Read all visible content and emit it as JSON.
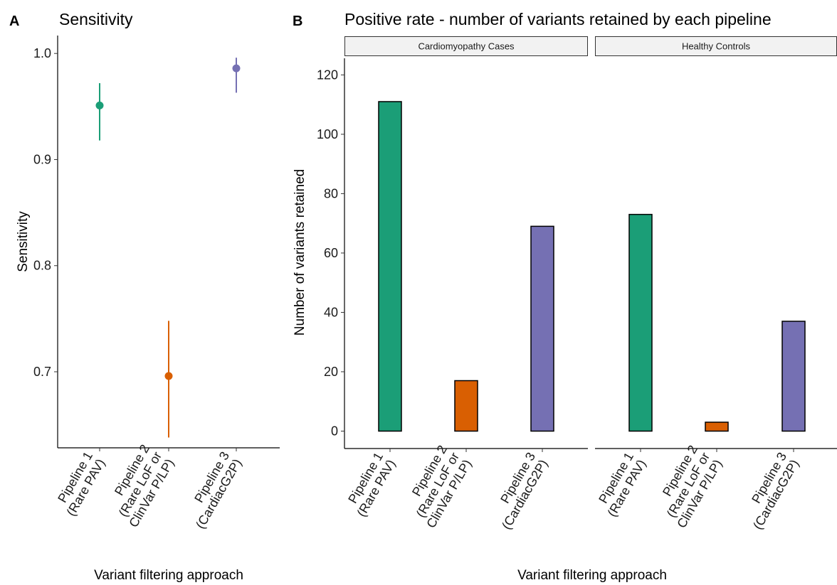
{
  "chart_data": [
    {
      "panel": "A",
      "type": "scatter",
      "title": "Sensitivity",
      "xlabel": "Variant filtering approach",
      "ylabel": "Sensitivity",
      "ylim": [
        0.625,
        1.015
      ],
      "yticks": [
        "0.7",
        "0.8",
        "0.9",
        "1.0"
      ],
      "categories": [
        [
          "Pipeline 1",
          "(Rare PAV)"
        ],
        [
          "Pipeline 2",
          "(Rare LoF or",
          "ClinVar P/LP)"
        ],
        [
          "Pipeline 3",
          "(CardiacG2P)"
        ]
      ],
      "points": [
        {
          "value": 0.951,
          "lower": 0.918,
          "upper": 0.972,
          "color": "#1b9e77"
        },
        {
          "value": 0.696,
          "lower": 0.638,
          "upper": 0.748,
          "color": "#d95f02"
        },
        {
          "value": 0.986,
          "lower": 0.963,
          "upper": 0.996,
          "color": "#7570b3"
        }
      ],
      "grid": false
    },
    {
      "panel": "B",
      "type": "bar",
      "title": "Positive rate - number of variants retained by each pipeline",
      "xlabel": "Variant filtering approach",
      "ylabel": "Number of variants retained",
      "ylim": [
        -6,
        126
      ],
      "yticks": [
        "0",
        "20",
        "40",
        "60",
        "80",
        "100",
        "120"
      ],
      "categories": [
        [
          "Pipeline 1",
          "(Rare PAV)"
        ],
        [
          "Pipeline 2",
          "(Rare LoF or",
          "ClinVar P/LP)"
        ],
        [
          "Pipeline 3",
          "(CardiacG2P)"
        ]
      ],
      "colors": [
        "#1b9e77",
        "#d95f02",
        "#7570b3"
      ],
      "facets": [
        {
          "label": "Cardiomyopathy Cases",
          "values": [
            111,
            17,
            69
          ]
        },
        {
          "label": "Healthy Controls",
          "values": [
            73,
            3,
            37
          ]
        }
      ],
      "grid": false
    }
  ]
}
